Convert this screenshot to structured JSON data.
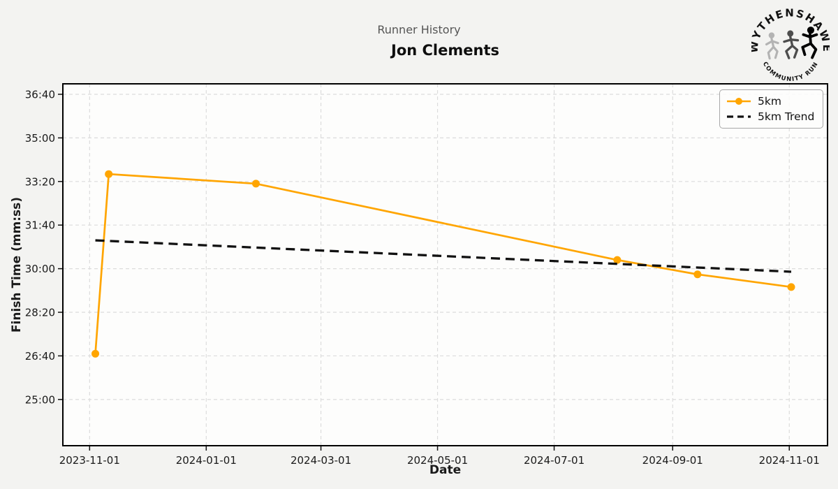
{
  "header": {
    "suptitle": "Runner History",
    "title": "Jon Clements"
  },
  "logo": {
    "top_text": "WYTHENSHAWE",
    "bottom_text": "COMMUNITY RUN"
  },
  "chart_data": {
    "type": "line",
    "title": "Jon Clements",
    "subtitle": "Runner History",
    "xlabel": "Date",
    "ylabel": "Finish Time (mm:ss)",
    "x_ticks": [
      "2023-11-01",
      "2024-01-01",
      "2024-03-01",
      "2024-05-01",
      "2024-07-01",
      "2024-09-01",
      "2024-11-01"
    ],
    "y_ticks": [
      "25:00",
      "26:40",
      "28:20",
      "30:00",
      "31:40",
      "33:20",
      "35:00",
      "36:40"
    ],
    "xlim": [
      "2023-10-18",
      "2024-11-21"
    ],
    "ylim_seconds": [
      1394,
      2224
    ],
    "grid": true,
    "legend_position": "upper right",
    "colors": {
      "series_5km": "#FFA500",
      "trend": "#111111",
      "gridline": "#dcdcdc",
      "figure_background": "#f3f3f1",
      "plot_background": "#fdfdfc"
    },
    "series": [
      {
        "name": "5km",
        "color": "#FFA500",
        "line_style": "solid",
        "marker": "circle",
        "points": [
          {
            "date": "2023-11-04",
            "time": "26:45"
          },
          {
            "date": "2023-11-11",
            "time": "33:37"
          },
          {
            "date": "2024-01-27",
            "time": "33:15"
          },
          {
            "date": "2024-08-03",
            "time": "30:20"
          },
          {
            "date": "2024-09-14",
            "time": "29:47"
          },
          {
            "date": "2024-11-02",
            "time": "29:18"
          }
        ]
      },
      {
        "name": "5km Trend",
        "color": "#111111",
        "line_style": "dashed",
        "marker": "none",
        "points": [
          {
            "date": "2023-11-04",
            "time": "31:05"
          },
          {
            "date": "2024-11-02",
            "time": "29:53"
          }
        ]
      }
    ]
  }
}
